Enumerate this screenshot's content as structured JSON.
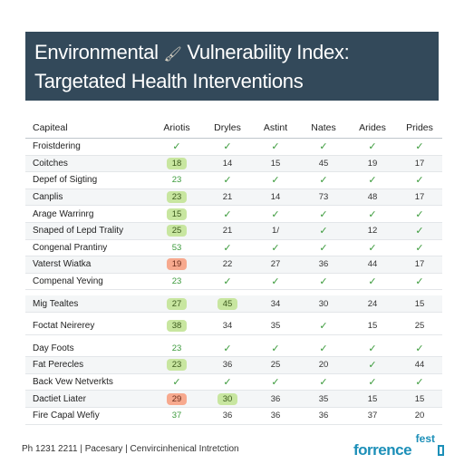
{
  "banner": {
    "line1_a": "Environmental",
    "glyph": "🖌",
    "line1_b": "Vulnerability Index:",
    "line2": "Targetated Health Interventions"
  },
  "table": {
    "headers": [
      "Capiteal",
      "Ariotis",
      "Dryles",
      "Astint",
      "Nates",
      "Arides",
      "Prides"
    ],
    "rows": [
      [
        "Froistdering",
        "check",
        "check",
        "check",
        "check",
        "check",
        "check"
      ],
      [
        "Coitches",
        "pg:18",
        "14",
        "15",
        "45",
        "19",
        "17"
      ],
      [
        "Depef of Sigting",
        "g:23",
        "check",
        "check",
        "check",
        "check",
        "check"
      ],
      [
        "Canplis",
        "pg:23",
        "21",
        "14",
        "73",
        "48",
        "17"
      ],
      [
        "Arage Warrinrg",
        "pg:15",
        "check",
        "check",
        "check",
        "check",
        "check"
      ],
      [
        "Snaped of Lepd Trality",
        "pg:25",
        "21",
        "1/",
        "check",
        "12",
        "check"
      ],
      [
        "Congenal Prantiny",
        "g:53",
        "check",
        "check",
        "check",
        "check",
        "check"
      ],
      [
        "Vaterst Wiatka",
        "pr:19",
        "22",
        "27",
        "36",
        "44",
        "17"
      ],
      [
        "Compenal Yeving",
        "g:23",
        "check",
        "check",
        "check",
        "check",
        "check"
      ],
      [
        "Mig Tealtes",
        "pg:27",
        "pg:45",
        "34",
        "30",
        "24",
        "15"
      ],
      [
        "Foctat Neirerey",
        "pg:38",
        "34",
        "35",
        "check",
        "15",
        "25"
      ],
      [
        "Day Foots",
        "g:23",
        "check",
        "check",
        "check",
        "check",
        "check"
      ],
      [
        "Fat Perecles",
        "pg:23",
        "36",
        "25",
        "20",
        "check",
        "44"
      ],
      [
        "Back Vew Netverkts",
        "check",
        "check",
        "check",
        "check",
        "check",
        "check"
      ],
      [
        "Dactiet Liater",
        "pr:29",
        "pg:30",
        "36",
        "35",
        "15",
        "15"
      ],
      [
        "Fire Capal Wefiy",
        "g:37",
        "36",
        "36",
        "36",
        "37",
        "20"
      ]
    ]
  },
  "footer": {
    "text": "Ph 1231 2211 | Pacesary | Cenvircinhenical Intretction"
  },
  "logo": {
    "top": "fest",
    "bottom": "forrence"
  },
  "colors": {
    "banner_bg": "#33495a",
    "pill_green": "#c8e6a0",
    "pill_red": "#f7a98e",
    "check_green": "#3b9a3b",
    "logo_blue": "#1c8fb8"
  }
}
